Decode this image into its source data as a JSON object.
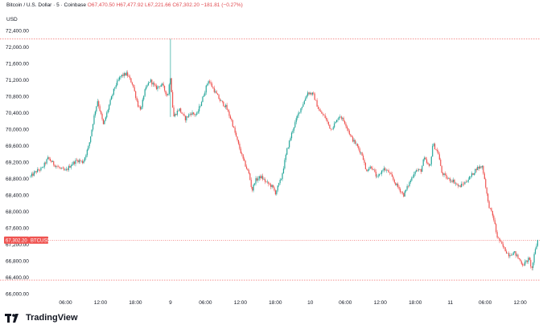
{
  "header": {
    "series_label": "Bitcoin / U.S. Dollar · 5 · Coinbase",
    "ohlc_text": "O67,470.50 H67,477.92 L67,221.66 C67,302.20 −181.81 (−0.27%)",
    "currency": "USD"
  },
  "brand": {
    "name": "TradingView"
  },
  "colors": {
    "up": "#26a69a",
    "down": "#ef5350",
    "price_label": "#ef5350"
  },
  "chart_data": {
    "type": "candlestick",
    "title": "",
    "xlabel": "",
    "ylabel": "",
    "ylim": [
      66000,
      72600
    ],
    "y_ticks": [
      66000,
      66400,
      66800,
      67200,
      67600,
      68000,
      68400,
      68800,
      69200,
      69600,
      70000,
      70400,
      70800,
      71200,
      71600,
      72000,
      72400
    ],
    "y_tick_labels": [
      "66,000.00",
      "66,400.00",
      "66,800.00",
      "67,200.00",
      "67,600.00",
      "68,000.00",
      "68,400.00",
      "68,800.00",
      "69,200.00",
      "69,600.00",
      "70,000.00",
      "70,400.00",
      "70,800.00",
      "71,200.00",
      "71,600.00",
      "72,000.00",
      "72,400.00"
    ],
    "x_ticks": [
      {
        "label": "06:00",
        "t": 6
      },
      {
        "label": "12:00",
        "t": 12
      },
      {
        "label": "18:00",
        "t": 18
      },
      {
        "label": "9",
        "t": 24
      },
      {
        "label": "06:00",
        "t": 30
      },
      {
        "label": "12:00",
        "t": 36
      },
      {
        "label": "18:00",
        "t": 42
      },
      {
        "label": "10",
        "t": 48
      },
      {
        "label": "06:00",
        "t": 54
      },
      {
        "label": "12:00",
        "t": 60
      },
      {
        "label": "18:00",
        "t": 66
      },
      {
        "label": "11",
        "t": 72
      },
      {
        "label": "06:00",
        "t": 78
      },
      {
        "label": "12:00",
        "t": 84
      }
    ],
    "xlim": [
      0,
      87.5
    ],
    "last_price": 67302.2,
    "last_price_label": "67,302.20",
    "last_price_tag": "BTCUSD",
    "high_line": 72200,
    "low_line": 66330,
    "price_path": [
      [
        0.0,
        68850
      ],
      [
        1.0,
        68980
      ],
      [
        2.0,
        69050
      ],
      [
        3.0,
        69300
      ],
      [
        4.0,
        69150
      ],
      [
        5.0,
        69050
      ],
      [
        6.0,
        68980
      ],
      [
        7.0,
        69150
      ],
      [
        8.0,
        69250
      ],
      [
        9.0,
        69200
      ],
      [
        10.0,
        69600
      ],
      [
        11.0,
        70400
      ],
      [
        11.5,
        70700
      ],
      [
        12.5,
        70100
      ],
      [
        13.5,
        70600
      ],
      [
        14.5,
        71050
      ],
      [
        15.5,
        71300
      ],
      [
        16.5,
        71350
      ],
      [
        17.5,
        71100
      ],
      [
        18.5,
        70550
      ],
      [
        19.0,
        70500
      ],
      [
        19.5,
        70900
      ],
      [
        20.5,
        71200
      ],
      [
        21.5,
        71000
      ],
      [
        22.5,
        71100
      ],
      [
        23.5,
        70800
      ],
      [
        24.0,
        71300
      ],
      [
        24.5,
        70300
      ],
      [
        25.5,
        70500
      ],
      [
        26.5,
        70250
      ],
      [
        27.5,
        70400
      ],
      [
        28.5,
        70350
      ],
      [
        29.5,
        70750
      ],
      [
        30.5,
        71200
      ],
      [
        31.5,
        70950
      ],
      [
        32.5,
        70700
      ],
      [
        33.5,
        70550
      ],
      [
        34.5,
        70200
      ],
      [
        35.5,
        69700
      ],
      [
        36.5,
        69250
      ],
      [
        37.5,
        68900
      ],
      [
        38.0,
        68500
      ],
      [
        38.5,
        68750
      ],
      [
        39.5,
        68850
      ],
      [
        40.5,
        68700
      ],
      [
        41.5,
        68600
      ],
      [
        42.0,
        68450
      ],
      [
        43.0,
        68800
      ],
      [
        44.0,
        69500
      ],
      [
        45.0,
        70000
      ],
      [
        46.0,
        70400
      ],
      [
        47.0,
        70700
      ],
      [
        47.5,
        70900
      ],
      [
        48.5,
        70850
      ],
      [
        49.5,
        70450
      ],
      [
        50.5,
        70300
      ],
      [
        51.5,
        70000
      ],
      [
        52.5,
        70200
      ],
      [
        53.0,
        70350
      ],
      [
        54.0,
        70150
      ],
      [
        55.0,
        69800
      ],
      [
        56.0,
        69600
      ],
      [
        57.0,
        69350
      ],
      [
        57.5,
        69000
      ],
      [
        58.5,
        69100
      ],
      [
        59.5,
        68800
      ],
      [
        60.5,
        69050
      ],
      [
        61.5,
        68950
      ],
      [
        62.5,
        68700
      ],
      [
        63.5,
        68500
      ],
      [
        64.0,
        68400
      ],
      [
        65.0,
        68700
      ],
      [
        66.0,
        69000
      ],
      [
        67.0,
        69000
      ],
      [
        67.5,
        69300
      ],
      [
        68.5,
        69050
      ],
      [
        69.0,
        69650
      ],
      [
        70.0,
        69400
      ],
      [
        70.5,
        68950
      ],
      [
        71.5,
        68800
      ],
      [
        72.5,
        68750
      ],
      [
        73.5,
        68600
      ],
      [
        74.5,
        68700
      ],
      [
        75.5,
        68850
      ],
      [
        76.5,
        69050
      ],
      [
        77.5,
        69100
      ],
      [
        78.0,
        68700
      ],
      [
        78.5,
        68200
      ],
      [
        79.5,
        67800
      ],
      [
        80.0,
        67400
      ],
      [
        81.0,
        67150
      ],
      [
        82.0,
        66950
      ],
      [
        83.0,
        67000
      ],
      [
        84.0,
        66800
      ],
      [
        84.5,
        66700
      ],
      [
        85.5,
        66850
      ],
      [
        86.0,
        66600
      ],
      [
        86.5,
        67000
      ],
      [
        87.0,
        67300
      ]
    ]
  }
}
